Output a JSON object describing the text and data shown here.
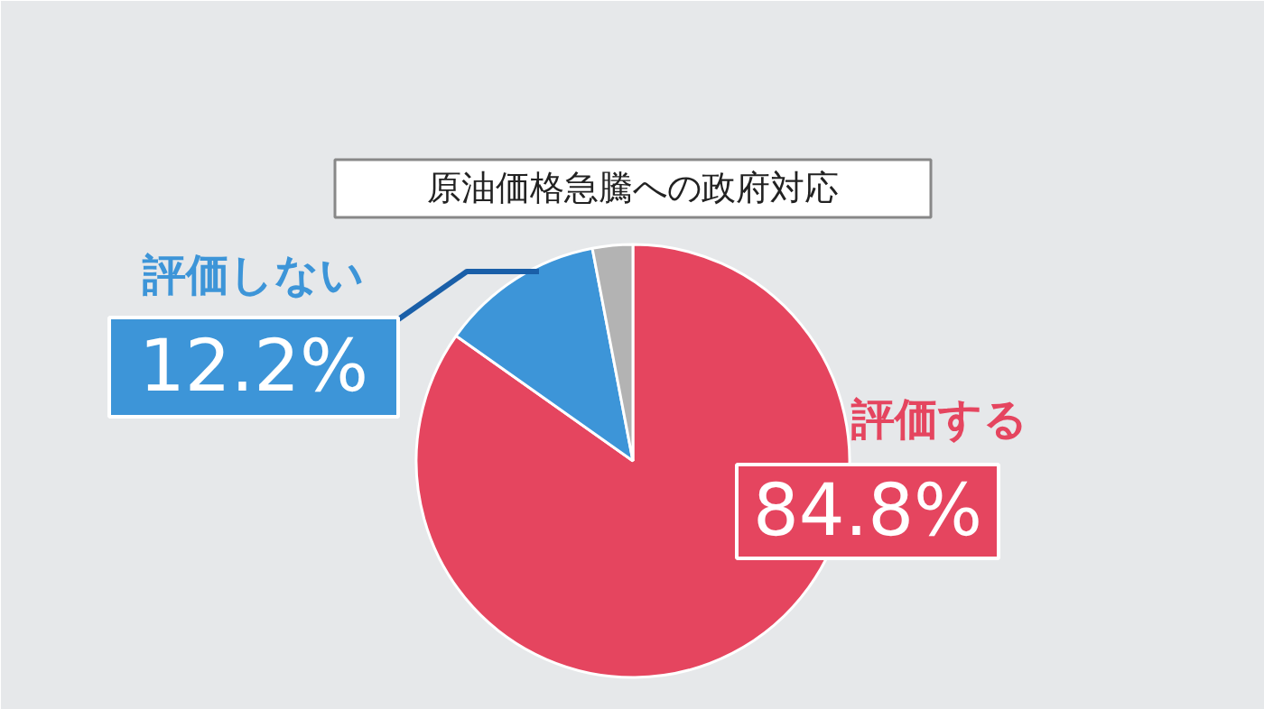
{
  "chart_data": {
    "type": "pie",
    "title": "原油価格急騰への政府対応",
    "categories": [
      "評価する",
      "評価しない",
      null
    ],
    "values": [
      84.8,
      12.2,
      3.0
    ],
    "colors": [
      "#e5455f",
      "#3d95d8",
      "#b3b3b3"
    ],
    "value_labels": [
      "84.8%",
      "12.2%",
      null
    ]
  }
}
